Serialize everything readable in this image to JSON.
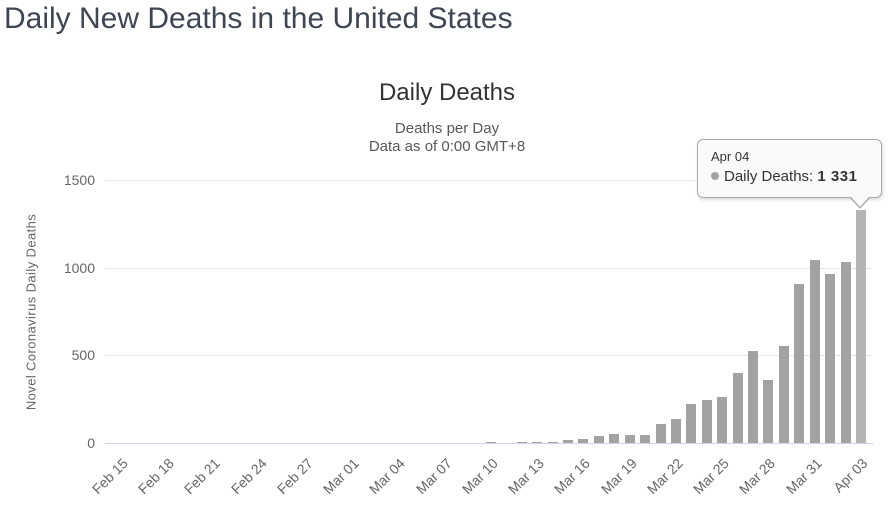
{
  "page": {
    "title": "Daily New Deaths in the United States"
  },
  "chart": {
    "title": "Daily Deaths",
    "subtitle_line1": "Deaths per Day",
    "subtitle_line2": "Data as of 0:00 GMT+8",
    "y_axis_title": "Novel Coronavirus Daily Deaths"
  },
  "tooltip": {
    "date": "Apr 04",
    "series_label": "Daily Deaths:",
    "value": "1 331",
    "marker_icon": "gray-dot"
  },
  "colors": {
    "bar": "#a2a2a2",
    "bar_hover": "#b4b4b4",
    "gridline": "#e6e6e6",
    "axis_line": "#ccd6eb",
    "axis_label": "#666666",
    "chart_text": "#333333",
    "page_title": "#3e4553",
    "tooltip_border": "#a9a9a9"
  },
  "chart_data": {
    "type": "bar",
    "title": "Daily Deaths",
    "subtitle": [
      "Deaths per Day",
      "Data as of 0:00 GMT+8"
    ],
    "xlabel": "",
    "ylabel": "Novel Coronavirus Daily Deaths",
    "ylim": [
      0,
      1500
    ],
    "yticks": [
      0,
      500,
      1000,
      1500
    ],
    "grid": "horizontal",
    "legend_position": "none",
    "xtick_label_every": 3,
    "xtick_label_rotation": -45,
    "xtick_labels_shown": [
      "Feb 15",
      "Feb 18",
      "Feb 21",
      "Feb 24",
      "Feb 27",
      "Mar 01",
      "Mar 04",
      "Mar 07",
      "Mar 10",
      "Mar 13",
      "Mar 16",
      "Mar 19",
      "Mar 22",
      "Mar 25",
      "Mar 28",
      "Mar 31",
      "Apr 03"
    ],
    "hovered_category": "Apr 04",
    "hovered_value": 1331,
    "categories": [
      "Feb 15",
      "Feb 16",
      "Feb 17",
      "Feb 18",
      "Feb 19",
      "Feb 20",
      "Feb 21",
      "Feb 22",
      "Feb 23",
      "Feb 24",
      "Feb 25",
      "Feb 26",
      "Feb 27",
      "Feb 28",
      "Feb 29",
      "Mar 01",
      "Mar 02",
      "Mar 03",
      "Mar 04",
      "Mar 05",
      "Mar 06",
      "Mar 07",
      "Mar 08",
      "Mar 09",
      "Mar 10",
      "Mar 11",
      "Mar 12",
      "Mar 13",
      "Mar 14",
      "Mar 15",
      "Mar 16",
      "Mar 17",
      "Mar 18",
      "Mar 19",
      "Mar 20",
      "Mar 21",
      "Mar 22",
      "Mar 23",
      "Mar 24",
      "Mar 25",
      "Mar 26",
      "Mar 27",
      "Mar 28",
      "Mar 29",
      "Mar 30",
      "Mar 31",
      "Apr 01",
      "Apr 02",
      "Apr 03",
      "Apr 04"
    ],
    "values": [
      0,
      0,
      0,
      0,
      0,
      0,
      0,
      0,
      0,
      0,
      0,
      0,
      0,
      0,
      1,
      1,
      5,
      2,
      3,
      1,
      3,
      2,
      4,
      4,
      4,
      8,
      3,
      8,
      10,
      11,
      18,
      23,
      41,
      57,
      49,
      46,
      111,
      140,
      225,
      247,
      268,
      400,
      525,
      363,
      558,
      912,
      1049,
      968,
      1036,
      1331
    ]
  }
}
